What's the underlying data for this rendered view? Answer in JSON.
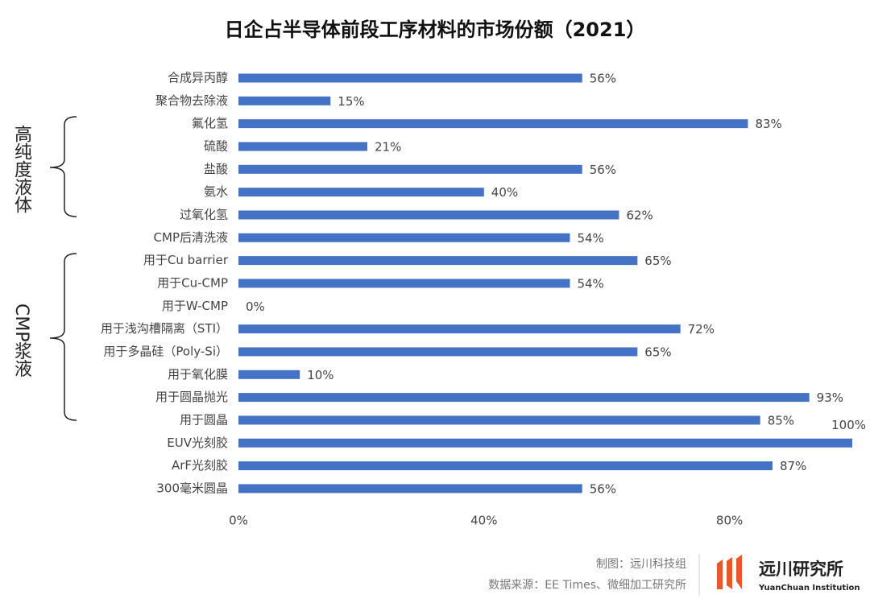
{
  "chart_data": {
    "type": "bar",
    "orientation": "horizontal",
    "title": "日企占半导体前段工序材料的市场份额（2021）",
    "categories": [
      "合成异丙醇",
      "聚合物去除液",
      "氟化氢",
      "硫酸",
      "盐酸",
      "氨水",
      "过氧化氢",
      "CMP后清洗液",
      "用于Cu barrier",
      "用于Cu-CMP",
      "用于W-CMP",
      "用于浅沟槽隔离（STI）",
      "用于多晶硅（Poly-Si）",
      "用于氧化膜",
      "用于圆晶抛光",
      "用于圆晶",
      "EUV光刻胶",
      "ArF光刻胶",
      "300毫米圆晶"
    ],
    "values": [
      56,
      15,
      83,
      21,
      56,
      40,
      62,
      54,
      65,
      54,
      0,
      72,
      65,
      10,
      93,
      85,
      100,
      87,
      56
    ],
    "value_labels": [
      "56%",
      "15%",
      "83%",
      "21%",
      "56%",
      "40%",
      "62%",
      "54%",
      "65%",
      "54%",
      "0%",
      "72%",
      "65%",
      "10%",
      "93%",
      "85%",
      "100%",
      "87%",
      "56%"
    ],
    "color": "#4472c4",
    "xlim": [
      0,
      100
    ],
    "xticks": [
      {
        "value": 0,
        "label": "0%"
      },
      {
        "value": 40,
        "label": "40%"
      },
      {
        "value": 80,
        "label": "80%"
      }
    ],
    "grid": false,
    "groups": [
      {
        "label": "高纯度液体"
      },
      {
        "label": "CMP浆液"
      }
    ]
  },
  "footer": {
    "credit": "制图：远川科技组",
    "source": "数据来源：EE Times、微细加工研究所",
    "logo": "远川研究所",
    "logo_en": "YuanChuan Institution"
  }
}
